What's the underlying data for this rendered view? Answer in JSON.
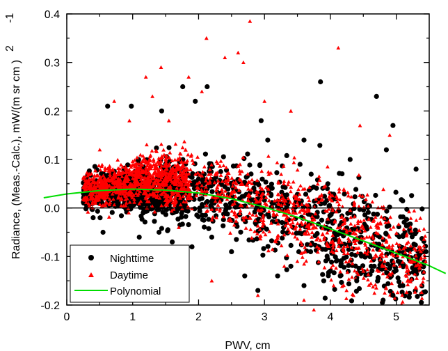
{
  "chart_data": {
    "type": "scatter",
    "xlabel": "PWV, cm",
    "ylabel": "Radiance, (Meas.-Calc.), mW/(m  sr cm  )",
    "ylabel_superscripts": [
      "2",
      "-1"
    ],
    "xlim": [
      0,
      5.5
    ],
    "ylim": [
      -0.2,
      0.4
    ],
    "x_ticks": [
      0,
      1,
      2,
      3,
      4,
      5
    ],
    "x_tick_labels": [
      "0",
      "1",
      "2",
      "3",
      "4",
      "5"
    ],
    "y_ticks": [
      -0.2,
      -0.1,
      0.0,
      0.1,
      0.2,
      0.3,
      0.4
    ],
    "y_tick_labels": [
      "-0.2",
      "-0.1",
      "0.0",
      "0.1",
      "0.2",
      "0.3",
      "0.4"
    ],
    "zero_line": true,
    "grid": false,
    "legend_position": "bottom-left",
    "colors": {
      "nighttime": "#000000",
      "daytime": "#ff0000",
      "polynomial": "#00dd00"
    },
    "series": [
      {
        "name": "Nighttime",
        "marker": "circle",
        "color": "#000000",
        "points": [
          [
            0.62,
            0.21
          ],
          [
            0.98,
            0.21
          ],
          [
            1.44,
            0.2
          ],
          [
            1.76,
            0.25
          ],
          [
            1.95,
            0.22
          ],
          [
            2.13,
            0.25
          ],
          [
            2.95,
            0.18
          ],
          [
            3.05,
            0.14
          ],
          [
            3.6,
            0.14
          ],
          [
            3.85,
            0.26
          ],
          [
            4.3,
            0.1
          ],
          [
            4.7,
            0.23
          ],
          [
            4.85,
            0.12
          ],
          [
            4.95,
            0.17
          ],
          [
            5.3,
            0.08
          ],
          [
            0.3,
            0.03
          ],
          [
            0.4,
            -0.02
          ],
          [
            0.55,
            -0.05
          ],
          [
            1.1,
            -0.06
          ],
          [
            1.4,
            -0.05
          ],
          [
            1.6,
            -0.07
          ],
          [
            2.5,
            -0.09
          ],
          [
            3.2,
            -0.14
          ],
          [
            3.6,
            -0.16
          ],
          [
            3.9,
            -0.15
          ],
          [
            4.15,
            -0.14
          ],
          [
            4.4,
            -0.15
          ],
          [
            4.8,
            -0.19
          ],
          [
            4.95,
            -0.18
          ],
          [
            5.3,
            -0.13
          ],
          [
            5.45,
            -0.09
          ],
          [
            2.7,
            -0.14
          ],
          [
            2.9,
            -0.17
          ],
          [
            3.4,
            -0.12
          ],
          [
            4.62,
            -0.12
          ],
          [
            5.1,
            -0.16
          ],
          [
            1.9,
            -0.08
          ],
          [
            2.2,
            -0.06
          ],
          [
            3.7,
            -0.09
          ],
          [
            4.0,
            -0.13
          ]
        ]
      },
      {
        "name": "Daytime",
        "marker": "triangle",
        "color": "#ff0000",
        "points": [
          [
            2.78,
            0.385
          ],
          [
            2.12,
            0.35
          ],
          [
            2.4,
            0.31
          ],
          [
            2.6,
            0.32
          ],
          [
            2.68,
            0.3
          ],
          [
            1.43,
            0.29
          ],
          [
            1.2,
            0.27
          ],
          [
            1.3,
            0.23
          ],
          [
            4.12,
            0.33
          ],
          [
            1.85,
            0.27
          ],
          [
            2.05,
            0.24
          ],
          [
            0.72,
            0.22
          ],
          [
            3.0,
            0.22
          ],
          [
            3.4,
            0.2
          ],
          [
            0.95,
            0.18
          ],
          [
            1.55,
            0.18
          ],
          [
            4.45,
            0.17
          ],
          [
            4.9,
            0.15
          ],
          [
            0.5,
            0.12
          ],
          [
            2.2,
            -0.15
          ],
          [
            3.5,
            -0.11
          ],
          [
            4.05,
            -0.16
          ],
          [
            4.5,
            -0.13
          ],
          [
            4.85,
            -0.07
          ],
          [
            5.2,
            -0.1
          ],
          [
            3.6,
            -0.19
          ],
          [
            4.0,
            -0.2
          ],
          [
            4.35,
            -0.18
          ],
          [
            2.9,
            -0.18
          ],
          [
            3.75,
            -0.21
          ],
          [
            1.7,
            -0.04
          ],
          [
            3.3,
            -0.12
          ]
        ]
      },
      {
        "name": "Polynomial",
        "type": "line",
        "color": "#00dd00",
        "points": [
          [
            -0.35,
            0.021
          ],
          [
            0,
            0.029
          ],
          [
            0.5,
            0.036
          ],
          [
            1.0,
            0.039
          ],
          [
            1.5,
            0.037
          ],
          [
            2.0,
            0.031
          ],
          [
            2.5,
            0.019
          ],
          [
            3.0,
            0.002
          ],
          [
            3.5,
            -0.019
          ],
          [
            4.0,
            -0.043
          ],
          [
            4.5,
            -0.068
          ],
          [
            5.0,
            -0.093
          ],
          [
            5.5,
            -0.119
          ],
          [
            5.75,
            -0.135
          ]
        ]
      }
    ]
  }
}
